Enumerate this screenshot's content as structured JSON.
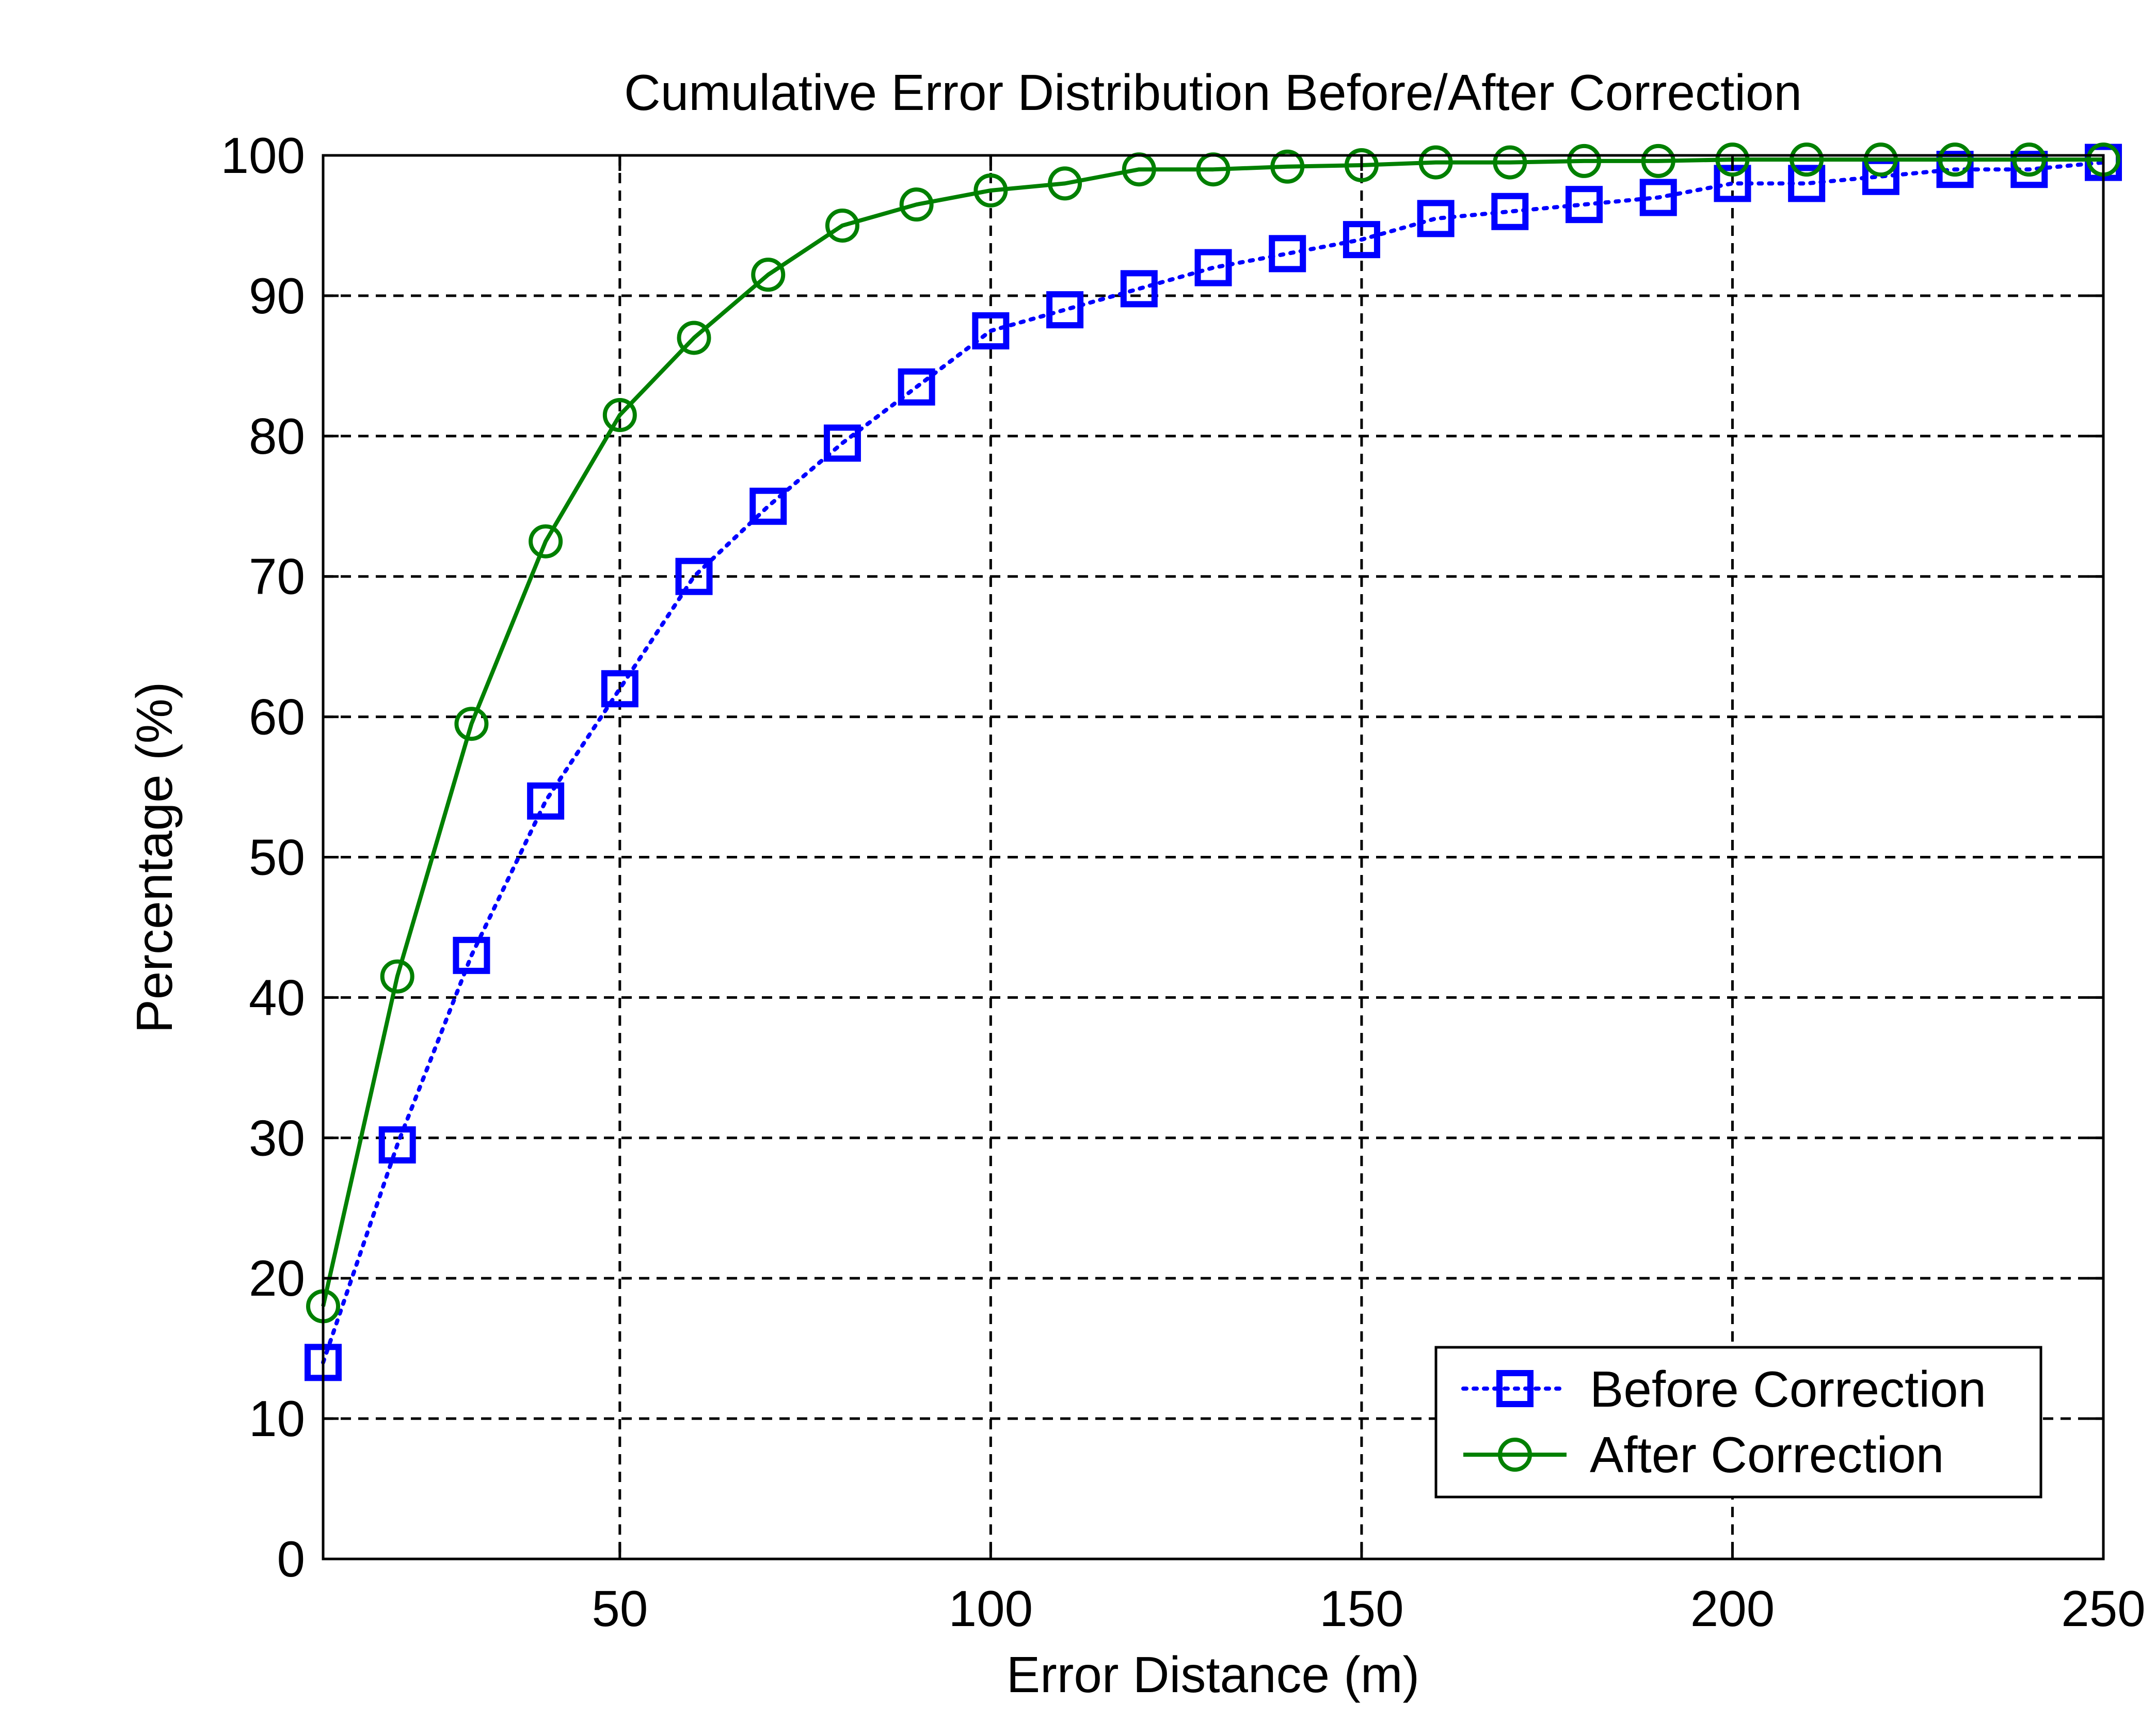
{
  "chart_data": {
    "type": "line",
    "title": "Cumulative Error Distribution Before/After Correction",
    "xlabel": "Error Distance (m)",
    "ylabel": "Percentage (%)",
    "xlim": [
      10,
      250
    ],
    "ylim": [
      0,
      100
    ],
    "x_ticks": [
      50,
      100,
      150,
      200,
      250
    ],
    "y_ticks": [
      0,
      10,
      20,
      30,
      40,
      50,
      60,
      70,
      80,
      90,
      100
    ],
    "grid": true,
    "legend_position": "bottom-right",
    "x": [
      10,
      20,
      30,
      40,
      50,
      60,
      70,
      80,
      90,
      100,
      110,
      120,
      130,
      140,
      150,
      160,
      170,
      180,
      190,
      200,
      210,
      220,
      230,
      240,
      250
    ],
    "series": [
      {
        "name": "Before Correction",
        "color": "#0000ff",
        "line_style": "dotted",
        "marker": "square",
        "values": [
          14,
          29.5,
          43,
          54,
          62,
          70,
          75,
          79.5,
          83.5,
          87.5,
          89,
          90.5,
          92,
          93,
          94,
          95.5,
          96,
          96.5,
          97,
          98,
          98,
          98.5,
          99,
          99,
          99.5
        ]
      },
      {
        "name": "After Correction",
        "color": "#008000",
        "line_style": "solid",
        "marker": "circle",
        "values": [
          18,
          41.5,
          59.5,
          72.5,
          81.5,
          87,
          91.5,
          95,
          96.5,
          97.5,
          98,
          99,
          99,
          99.2,
          99.3,
          99.5,
          99.5,
          99.6,
          99.6,
          99.7,
          99.7,
          99.7,
          99.7,
          99.7,
          99.7
        ]
      }
    ]
  }
}
